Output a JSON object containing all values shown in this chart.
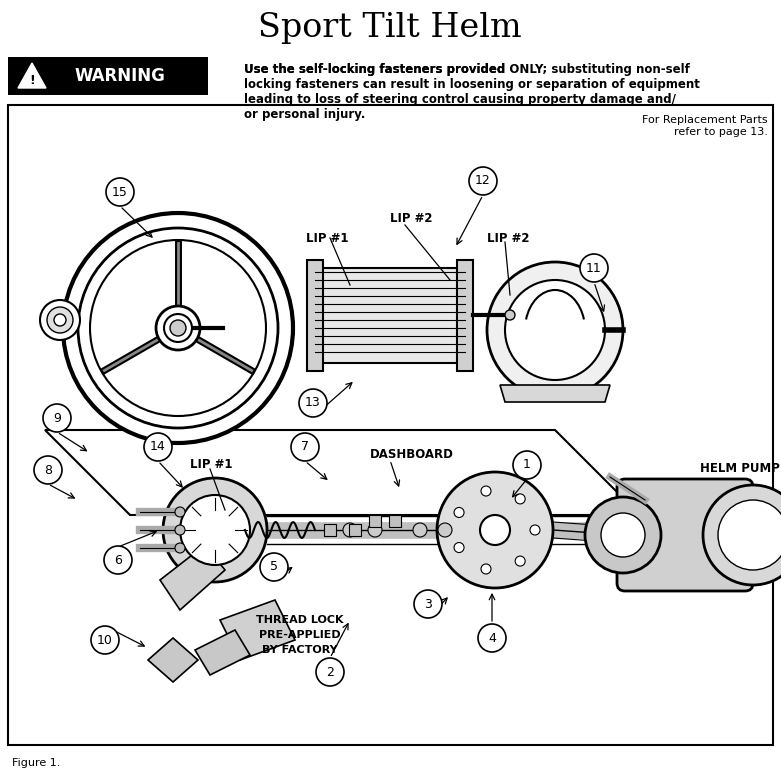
{
  "title": "Sport Tilt Helm",
  "title_fontsize": 24,
  "warning_text": "WARNING",
  "warning_body_line1": "Use the self-locking fasteners provided ",
  "warning_body_bold": "ONLY",
  "warning_body_line2": "; substituting non-self",
  "warning_body_rest": "locking fasteners can result in loosening or separation of equipment\nleading to loss of steering control causing property damage and/\nor personal injury.",
  "replacement_text": "For Replacement Parts\nrefer to page 13.",
  "figure_label": "Figure 1.",
  "bg": "#ffffff",
  "figw": 7.81,
  "figh": 7.83,
  "dpi": 100
}
